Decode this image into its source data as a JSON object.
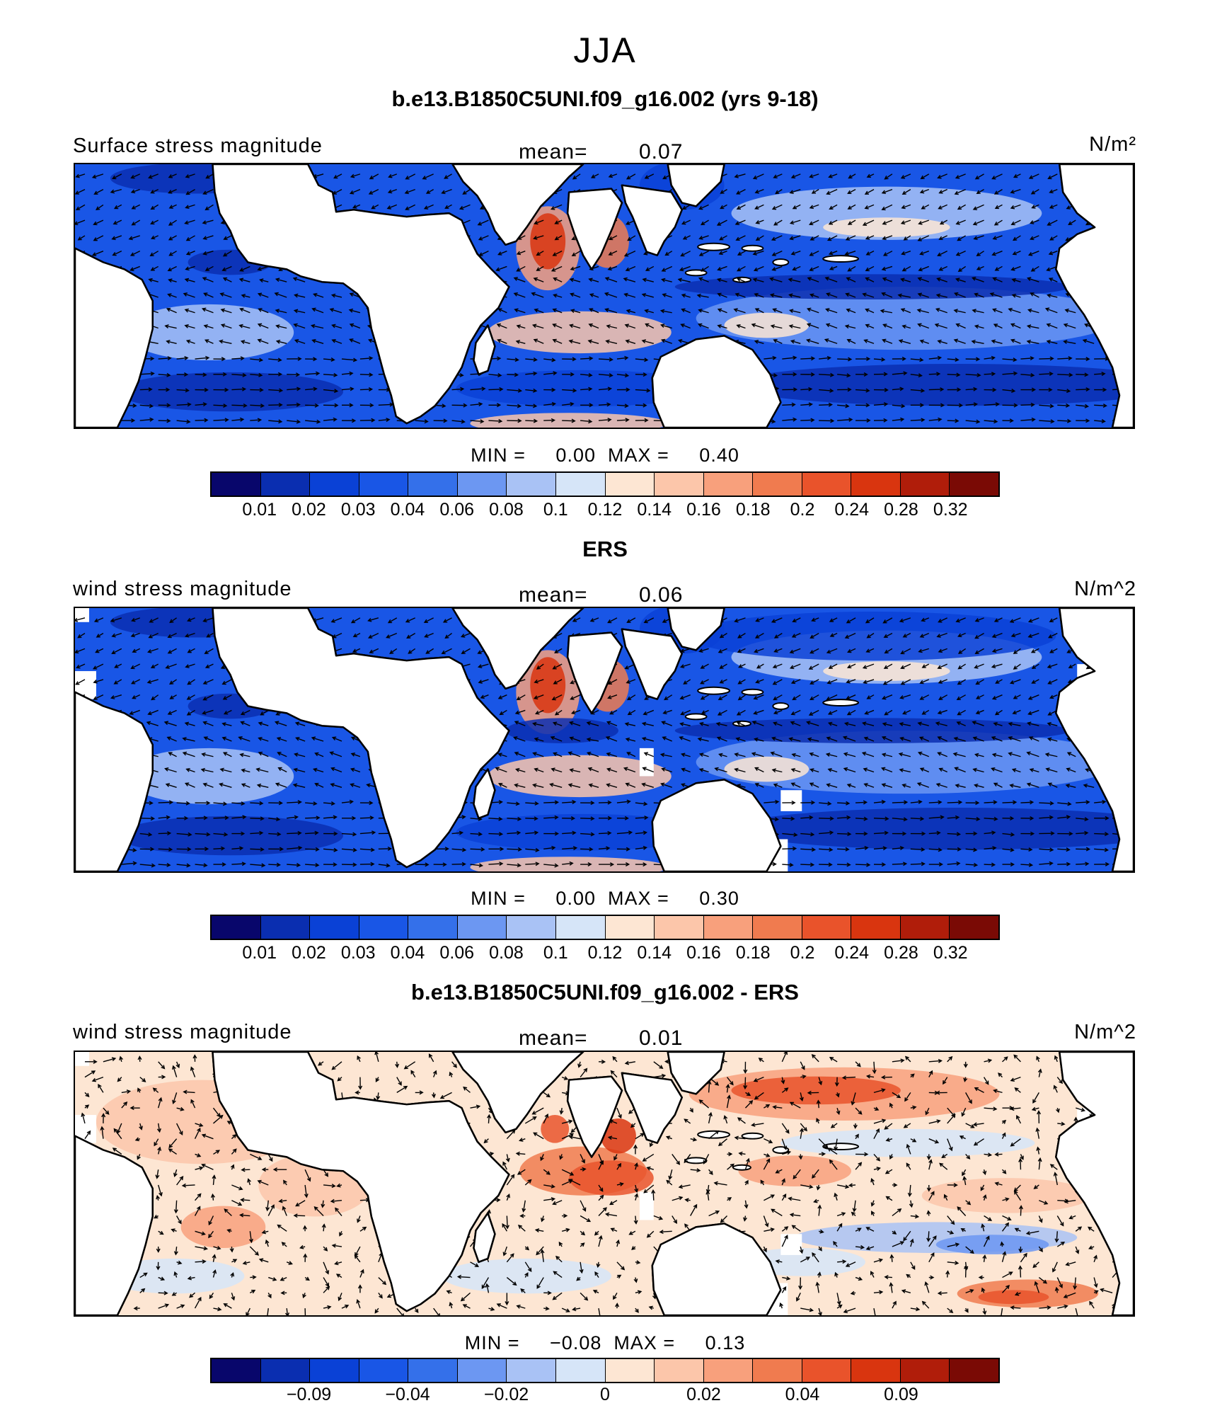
{
  "season": "JJA",
  "colors": [
    "#08066b",
    "#0a2eb0",
    "#0a41d6",
    "#1956e6",
    "#3470ea",
    "#6c97f2",
    "#a9c2f5",
    "#d6e5f8",
    "#fde6d3",
    "#fcc6aa",
    "#f8a07c",
    "#f07b4f",
    "#e9532b",
    "#d9350f",
    "#b01d0a",
    "#7a0a05"
  ],
  "panels": [
    {
      "id": "model",
      "title": "b.e13.B1850C5UNI.f09_g16.002 (yrs 9-18)",
      "left_label": "Surface stress magnitude",
      "mean_label": "mean=",
      "mean_value": "0.07",
      "units": "N/m²",
      "min_label": "MIN =",
      "min_value": "0.00",
      "max_label": "MAX =",
      "max_value": "0.40",
      "colorbar_ticks": [
        "0.01",
        "0.02",
        "0.03",
        "0.04",
        "0.06",
        "0.08",
        "0.1",
        "0.12",
        "0.14",
        "0.16",
        "0.18",
        "0.2",
        "0.24",
        "0.28",
        "0.32"
      ]
    },
    {
      "id": "obs",
      "title": "ERS",
      "left_label": "wind stress magnitude",
      "mean_label": "mean=",
      "mean_value": "0.06",
      "units": "N/m^2",
      "min_label": "MIN =",
      "min_value": "0.00",
      "max_label": "MAX =",
      "max_value": "0.30",
      "colorbar_ticks": [
        "0.01",
        "0.02",
        "0.03",
        "0.04",
        "0.06",
        "0.08",
        "0.1",
        "0.12",
        "0.14",
        "0.16",
        "0.18",
        "0.2",
        "0.24",
        "0.28",
        "0.32"
      ]
    },
    {
      "id": "diff",
      "title": "b.e13.B1850C5UNI.f09_g16.002 - ERS",
      "left_label": "wind stress magnitude",
      "mean_label": "mean=",
      "mean_value": "0.01",
      "units": "N/m^2",
      "min_label": "MIN =",
      "min_value": "−0.08",
      "max_label": "MAX =",
      "max_value": "0.13",
      "colorbar_ticks": [
        "−0.09",
        "−0.04",
        "−0.02",
        "0",
        "0.02",
        "0.04",
        "0.09"
      ]
    }
  ]
}
